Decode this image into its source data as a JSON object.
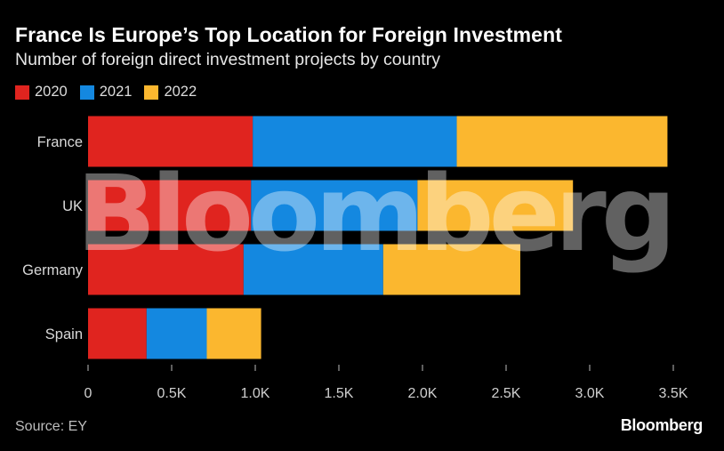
{
  "header": {
    "title": "France Is Europe’s Top Location for Foreign Investment",
    "subtitle": "Number of foreign direct investment projects by country"
  },
  "footer": {
    "source": "Source: EY",
    "brand": "Bloomberg"
  },
  "watermark": "Bloomberg",
  "colors": {
    "background": "#000000",
    "s2020": "#e0241f",
    "s2021": "#1488e0",
    "s2022": "#fbb72f",
    "axis": "#bbbbbb"
  },
  "chart_data": {
    "type": "bar",
    "orientation": "horizontal",
    "stacked": true,
    "categories": [
      "France",
      "UK",
      "Germany",
      "Spain"
    ],
    "series": [
      {
        "name": "2020",
        "values": [
          985,
          975,
          930,
          350
        ]
      },
      {
        "name": "2021",
        "values": [
          1220,
          995,
          835,
          360
        ]
      },
      {
        "name": "2022",
        "values": [
          1260,
          930,
          820,
          325
        ]
      }
    ],
    "xlim": [
      0,
      3500
    ],
    "xticks": [
      0,
      500,
      1000,
      1500,
      2000,
      2500,
      3000,
      3500
    ],
    "xtick_labels": [
      "0",
      "0.5K",
      "1.0K",
      "1.5K",
      "2.0K",
      "2.5K",
      "3.0K",
      "3.5K"
    ],
    "legend_position": "top-left",
    "grid": false
  }
}
